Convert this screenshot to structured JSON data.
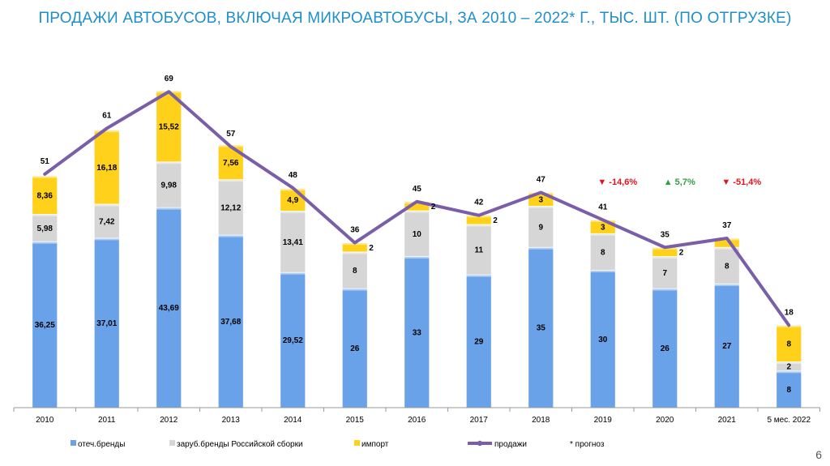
{
  "slide": {
    "title": "ПРОДАЖИ АВТОБУСОВ, ВКЛЮЧАЯ МИКРОАВТОБУСЫ, ЗА 2010 – 2022* Г., ТЫС. ШТ. (ПО ОТГРУЗКЕ)",
    "page_number": "6",
    "footnote": "* прогноз"
  },
  "colors": {
    "domestic": "#6aa2ea",
    "foreign": "#d6d6d6",
    "import": "#ffd11a",
    "line": "#7a5ea8",
    "title": "#1f8fc9",
    "down": "#e0141e",
    "up": "#2f9e44"
  },
  "chart_data": {
    "type": "bar",
    "stacked": true,
    "categories": [
      "2010",
      "2011",
      "2012",
      "2013",
      "2014",
      "2015",
      "2016",
      "2017",
      "2018",
      "2019",
      "2020",
      "2021",
      "5 мес. 2022"
    ],
    "series": [
      {
        "name": "отеч.бренды",
        "values": [
          36.25,
          37.01,
          43.69,
          37.68,
          29.52,
          26,
          33,
          29,
          35,
          30,
          26,
          27,
          8
        ],
        "labels": [
          "36,25",
          "37,01",
          "43,69",
          "37,68",
          "29,52",
          "26",
          "33",
          "29",
          "35",
          "30",
          "26",
          "27",
          "8"
        ]
      },
      {
        "name": "заруб.бренды Российской сборки",
        "values": [
          5.98,
          7.42,
          9.98,
          12.12,
          13.41,
          8,
          10,
          11,
          9,
          8,
          7,
          8,
          2
        ],
        "labels": [
          "5,98",
          "7,42",
          "9,98",
          "12,12",
          "13,41",
          "8",
          "10",
          "11",
          "9",
          "8",
          "7",
          "8",
          "2"
        ]
      },
      {
        "name": "импорт",
        "values": [
          8.36,
          16.18,
          15.52,
          7.56,
          4.9,
          2,
          2,
          2,
          3,
          3,
          2,
          2,
          8
        ],
        "labels": [
          "8,36",
          "16,18",
          "15,52",
          "7,56",
          "4,9",
          "2",
          "2",
          "2",
          "3",
          "3",
          "2",
          "",
          "8"
        ]
      }
    ],
    "line": {
      "name": "продажи",
      "values": [
        51,
        61,
        69,
        57,
        48,
        36,
        45,
        42,
        47,
        41,
        35,
        37,
        18
      ],
      "labels": [
        "51",
        "61",
        "69",
        "57",
        "48",
        "36",
        "45",
        "42",
        "47",
        "41",
        "35",
        "37",
        "18"
      ]
    },
    "annotations": [
      {
        "category": "2019",
        "text": "▼ -14,6%",
        "direction": "down"
      },
      {
        "category": "2020",
        "text": "▲ 5,7%",
        "direction": "up"
      },
      {
        "category": "2021",
        "text": "▼ -51,4%",
        "direction": "down"
      }
    ],
    "ylim": [
      0,
      70
    ],
    "grid": false,
    "legend": "bottom"
  }
}
